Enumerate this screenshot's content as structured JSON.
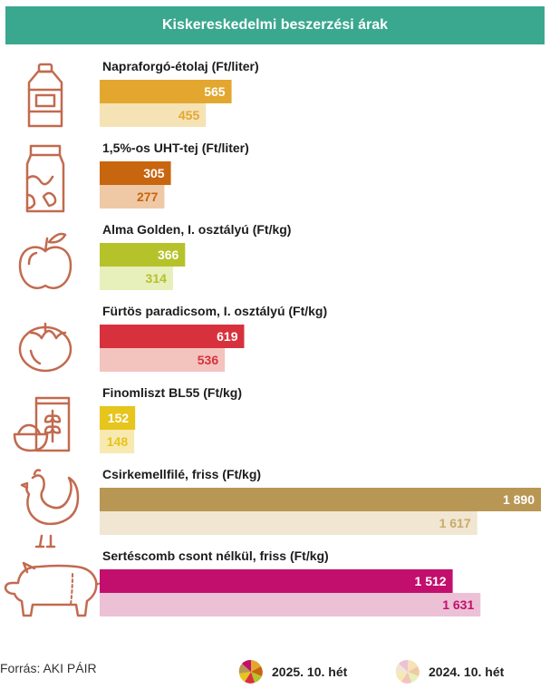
{
  "header": {
    "title": "Kiskereskedelmi beszerzési árak"
  },
  "source": "Forrás: AKI PÁIR",
  "legend": {
    "current": {
      "label": "2025. 10. hét",
      "icon": "multicolor-pie-icon"
    },
    "previous": {
      "label": "2024. 10. hét",
      "icon": "pastel-pie-icon"
    }
  },
  "chart_data": {
    "type": "bar",
    "orientation": "horizontal",
    "title": "Kiskereskedelmi beszerzési árak",
    "categories": [
      "Napraforgó-étolaj (Ft/liter)",
      "1,5%-os UHT-tej (Ft/liter)",
      "Alma Golden, I. osztályú (Ft/kg)",
      "Fürtös paradicsom, I. osztályú (Ft/kg)",
      "Finomliszt BL55 (Ft/kg)",
      "Csirkemellfilé, friss (Ft/kg)",
      "Sertéscomb csont nélkül, friss (Ft/kg)"
    ],
    "series": [
      {
        "name": "2025. 10. hét",
        "values": [
          565,
          305,
          366,
          619,
          152,
          1890,
          1512
        ],
        "labels": [
          "565",
          "305",
          "366",
          "619",
          "152",
          "1 890",
          "1 512"
        ]
      },
      {
        "name": "2024. 10. hét",
        "values": [
          455,
          277,
          314,
          536,
          148,
          1617,
          1631
        ],
        "labels": [
          "455",
          "277",
          "314",
          "536",
          "148",
          "1 617",
          "1 631"
        ]
      }
    ],
    "colors": {
      "current": [
        "#e3a72f",
        "#c8650f",
        "#b5c22a",
        "#d8313e",
        "#e6c51c",
        "#b89654",
        "#c20f6d"
      ],
      "previous": [
        "#f5e2b5",
        "#efc9a5",
        "#e7efbb",
        "#f3c3bd",
        "#f7e9b0",
        "#f0e6d1",
        "#ecc1d6"
      ],
      "label_previous": [
        "#e3a72f",
        "#c8650f",
        "#b5c22a",
        "#d8313e",
        "#e6c51c",
        "#c9ab6a",
        "#c20f6d"
      ]
    },
    "icons": [
      "oil-bottle-icon",
      "milk-carton-icon",
      "apple-icon",
      "tomato-icon",
      "flour-bag-icon",
      "chicken-icon",
      "pig-icon"
    ],
    "xlim": [
      0,
      1890
    ]
  }
}
